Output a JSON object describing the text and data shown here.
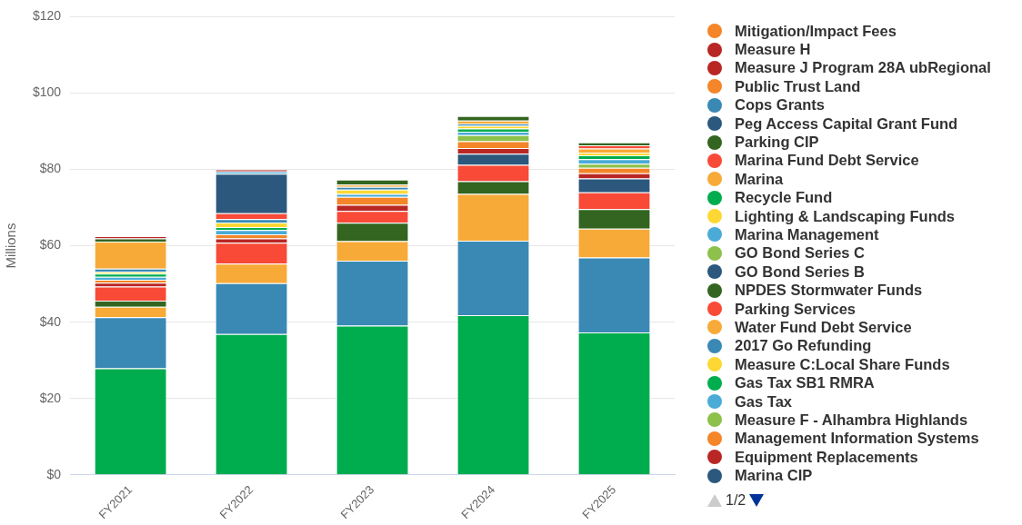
{
  "chart_data": {
    "type": "bar",
    "stacked": true,
    "ylabel": "Millions",
    "categories": [
      "FY2021",
      "FY2022",
      "FY2023",
      "FY2024",
      "FY2025"
    ],
    "ylim": [
      0,
      120
    ],
    "yticks": [
      {
        "value": 0,
        "label": "$0"
      },
      {
        "value": 20,
        "label": "$20"
      },
      {
        "value": 40,
        "label": "$40"
      },
      {
        "value": 60,
        "label": "$60"
      },
      {
        "value": 80,
        "label": "$80"
      },
      {
        "value": 100,
        "label": "$100"
      },
      {
        "value": 120,
        "label": "$120"
      }
    ],
    "grid": "y",
    "legend": "right",
    "annotations": [
      "1/2"
    ],
    "series": [
      {
        "color": "#00ad4e",
        "values": [
          27.9,
          36.9,
          39.1,
          41.8,
          37.3
        ]
      },
      {
        "color": "#3a89b5",
        "values": [
          13.4,
          13.3,
          17.0,
          19.5,
          19.6
        ]
      },
      {
        "color": "#f7aa38",
        "values": [
          2.7,
          5.1,
          5.1,
          12.3,
          7.6
        ]
      },
      {
        "color": "#336521",
        "values": [
          1.6,
          null,
          4.8,
          3.3,
          5.1
        ]
      },
      {
        "color": "#f84a37",
        "values": [
          3.7,
          5.5,
          3.1,
          4.3,
          4.4
        ]
      },
      {
        "name": "Marina CIP",
        "color": "#2c587e",
        "values": [
          null,
          null,
          null,
          2.9,
          3.6
        ]
      },
      {
        "name": "Equipment Replacements",
        "color": "#b92725",
        "values": [
          1.0,
          1.1,
          1.6,
          1.5,
          1.4
        ]
      },
      {
        "name": "Management Information Systems",
        "color": "#f48528",
        "values": [
          0.8,
          1.1,
          2.1,
          1.8,
          1.4
        ]
      },
      {
        "name": "Measure F - Alhambra Highlands",
        "color": "#8dc14b",
        "values": [
          null,
          null,
          null,
          1.6,
          1.1
        ]
      },
      {
        "name": "Gas Tax",
        "color": "#4aabd7",
        "values": [
          0.8,
          1.1,
          0.8,
          0.9,
          1.2
        ]
      },
      {
        "name": "Gas Tax SB1 RMRA",
        "color": "#00ad4e",
        "values": [
          0.8,
          0.8,
          null,
          0.8,
          1.0
        ]
      },
      {
        "name": "Measure C:Local Share Funds",
        "color": "#fdd835",
        "values": [
          0.5,
          1.2,
          1.1,
          0.7,
          0.7
        ]
      },
      {
        "name": "2017 Go Refunding",
        "color": "#3a89b5",
        "values": [
          0.8,
          0.9,
          0.7,
          0.6,
          null
        ]
      },
      {
        "name": "Water Fund Debt Service",
        "color": "#f7aa38",
        "values": [
          7.1,
          null,
          0.6,
          0.8,
          1.1
        ]
      },
      {
        "name": "Parking Services",
        "color": "#f84a37",
        "values": [
          null,
          1.5,
          null,
          null,
          0.8
        ]
      },
      {
        "name": "NPDES Stormwater Funds",
        "color": "#336521",
        "values": [
          0.8,
          null,
          1.3,
          1.2,
          0.8
        ]
      },
      {
        "name": "GO Bond Series B",
        "color": "#2c587e",
        "values": [
          null,
          10.4,
          null,
          null,
          null
        ]
      },
      {
        "name": "GO Bond Series C",
        "color": "#8dc14b",
        "values": [
          null,
          null,
          null,
          null,
          null
        ]
      },
      {
        "name": "Marina Management",
        "color": "#4aabd7",
        "values": [
          null,
          0.6,
          null,
          null,
          null
        ]
      },
      {
        "name": "Lighting & Landscaping Funds",
        "color": "#fdd835",
        "values": [
          null,
          null,
          null,
          null,
          null
        ]
      },
      {
        "name": "Recycle Fund",
        "color": "#00ad4e",
        "values": [
          null,
          null,
          null,
          null,
          null
        ]
      },
      {
        "name": "Marina",
        "color": "#f7aa38",
        "values": [
          null,
          null,
          null,
          null,
          null
        ]
      },
      {
        "name": "Marina Fund Debt Service",
        "color": "#f84a37",
        "values": [
          null,
          null,
          null,
          null,
          null
        ]
      },
      {
        "name": "Parking CIP",
        "color": "#336521",
        "values": [
          null,
          null,
          null,
          null,
          null
        ]
      },
      {
        "name": "Peg Access Capital Grant Fund",
        "color": "#2c587e",
        "values": [
          null,
          null,
          null,
          null,
          null
        ]
      },
      {
        "name": "Cops Grants",
        "color": "#3a89b5",
        "values": [
          null,
          null,
          null,
          null,
          null
        ]
      },
      {
        "name": "Public Trust Land",
        "color": "#f48528",
        "values": [
          null,
          null,
          null,
          null,
          null
        ]
      },
      {
        "name": "Measure J Program 28A ubRegional",
        "color": "#b92725",
        "values": [
          null,
          null,
          null,
          null,
          null
        ]
      },
      {
        "name": "Measure H",
        "color": "#b92725",
        "values": [
          0.6,
          0.5,
          null,
          null,
          null
        ]
      },
      {
        "name": "Mitigation/Impact Fees",
        "color": "#f48528",
        "values": [
          null,
          null,
          null,
          null,
          null
        ]
      }
    ]
  }
}
